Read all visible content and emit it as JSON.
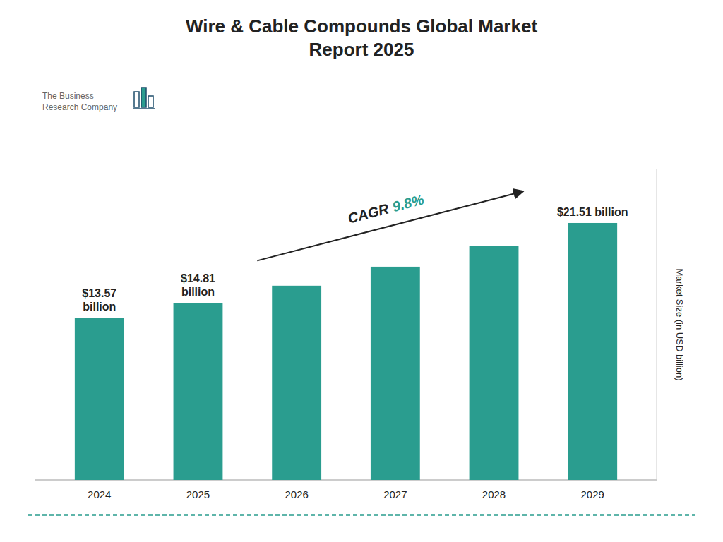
{
  "chart_data": {
    "type": "bar",
    "title": "Wire & Cable Compounds Global Market\nReport 2025",
    "categories": [
      "2024",
      "2025",
      "2026",
      "2027",
      "2028",
      "2029"
    ],
    "values": [
      13.57,
      14.81,
      16.26,
      17.85,
      19.6,
      21.51
    ],
    "value_labels": [
      "$13.57\nbillion",
      "$14.81\nbillion",
      null,
      null,
      null,
      "$21.51 billion"
    ],
    "color": "#2a9d8f",
    "y_label": "Market Size (in USD billion)",
    "ylim": [
      0,
      26
    ],
    "grid": false,
    "tick_labels": "x",
    "annotations": [
      "CAGR",
      "9.8%"
    ],
    "source": "The Business\nResearch Company"
  }
}
